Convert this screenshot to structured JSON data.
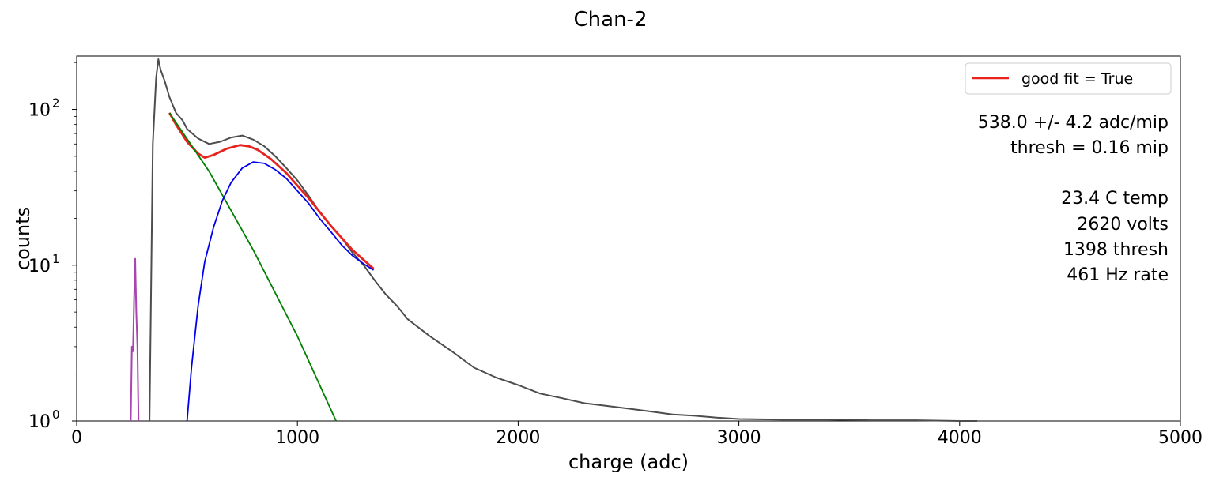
{
  "chart_data": {
    "type": "line",
    "title": "Chan-2",
    "xlabel": "charge (adc)",
    "ylabel": "counts",
    "xlim": [
      0,
      5000
    ],
    "ylim": [
      1,
      220
    ],
    "yscale": "log",
    "grid": false,
    "legend": {
      "placement": "top-right",
      "entries": [
        {
          "label": "good fit = True",
          "color": "#e8221e"
        }
      ]
    },
    "x_ticks": [
      "0",
      "1000",
      "2000",
      "3000",
      "4000",
      "5000"
    ],
    "y_ticks": [
      {
        "value": 1,
        "base": "10",
        "exp": "0"
      },
      {
        "value": 10,
        "base": "10",
        "exp": "1"
      },
      {
        "value": 100,
        "base": "10",
        "exp": "2"
      }
    ],
    "annotations": [
      "538.0 +/- 4.2  adc/mip",
      "thresh = 0.16 mip",
      "23.4 C temp",
      "2620 volts",
      "1398 thresh",
      "461 Hz rate"
    ],
    "series": [
      {
        "role": "histogram",
        "color": "#4d4d4d",
        "x": [
          330,
          345,
          360,
          370,
          380,
          400,
          420,
          450,
          480,
          500,
          550,
          600,
          650,
          700,
          750,
          800,
          850,
          900,
          950,
          1000,
          1050,
          1100,
          1150,
          1200,
          1250,
          1300,
          1350,
          1400,
          1450,
          1500,
          1600,
          1700,
          1800,
          1900,
          2000,
          2100,
          2200,
          2300,
          2400,
          2500,
          2600,
          2700,
          2800,
          2900,
          3000,
          3200,
          3400,
          3600,
          3800,
          4000,
          4080
        ],
        "y": [
          1,
          60,
          160,
          210,
          180,
          150,
          120,
          95,
          85,
          75,
          65,
          60,
          62,
          66,
          68,
          64,
          58,
          50,
          42,
          35,
          28,
          22,
          18,
          15,
          12,
          10,
          8,
          6.5,
          5.5,
          4.5,
          3.5,
          2.8,
          2.2,
          1.9,
          1.7,
          1.5,
          1.4,
          1.3,
          1.25,
          1.2,
          1.15,
          1.1,
          1.08,
          1.05,
          1.03,
          1.02,
          1.02,
          1.01,
          1.01,
          1.0,
          1.0
        ]
      },
      {
        "role": "pedestal",
        "color": "#a845b0",
        "x": [
          245,
          250,
          255,
          260,
          265,
          270,
          275,
          280
        ],
        "y": [
          1,
          3,
          2.8,
          6,
          11,
          5,
          3,
          1
        ]
      },
      {
        "name": "good fit = True",
        "role": "total fit",
        "color": "#e8221e",
        "x": [
          420,
          450,
          500,
          550,
          580,
          620,
          680,
          740,
          780,
          820,
          880,
          950,
          1050,
          1150,
          1250,
          1345
        ],
        "y": [
          95,
          80,
          62,
          52,
          49,
          51,
          56,
          59,
          58,
          55,
          48,
          39,
          27,
          18,
          12.5,
          9.5
        ]
      },
      {
        "role": "exponential",
        "color": "#008000",
        "x": [
          420,
          600,
          800,
          1000,
          1175
        ],
        "y": [
          95,
          40,
          12.5,
          3.5,
          1
        ]
      },
      {
        "role": "signal",
        "color": "#0000ee",
        "x": [
          500,
          520,
          550,
          580,
          620,
          660,
          700,
          750,
          800,
          850,
          900,
          950,
          1000,
          1050,
          1100,
          1150,
          1200,
          1250,
          1300,
          1345
        ],
        "y": [
          1,
          2.2,
          5.5,
          10.5,
          17.5,
          26,
          34,
          42,
          46,
          45,
          41,
          36,
          30,
          25,
          20,
          16.5,
          13.5,
          11.5,
          10.2,
          9.3
        ]
      }
    ]
  }
}
